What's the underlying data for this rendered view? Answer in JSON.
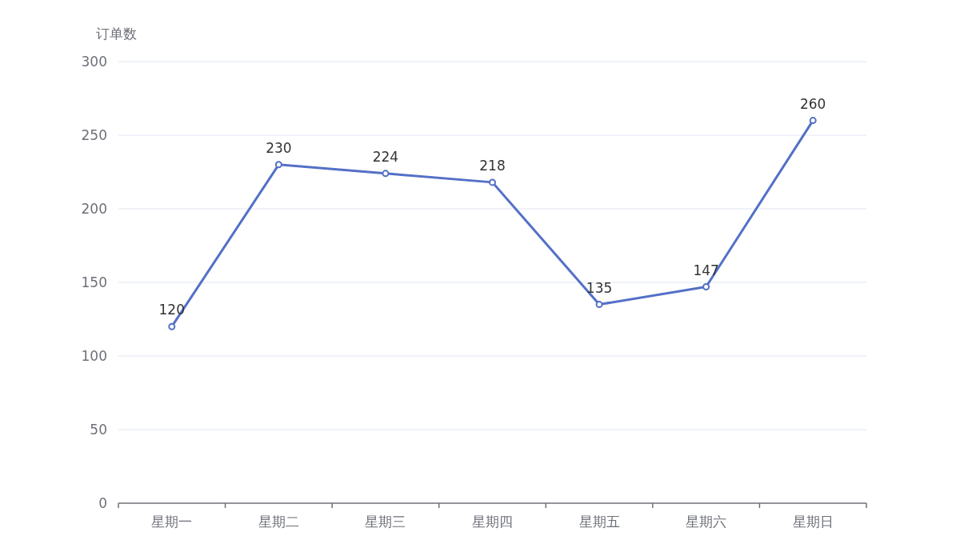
{
  "chart_data": {
    "type": "line",
    "ylabel": "订单数",
    "categories": [
      "星期一",
      "星期二",
      "星期三",
      "星期四",
      "星期五",
      "星期六",
      "星期日"
    ],
    "series": [
      {
        "color": "#5470c6",
        "values": [
          120,
          230,
          224,
          218,
          135,
          147,
          260
        ]
      }
    ],
    "ylim": [
      0,
      300
    ],
    "yticks": [
      0,
      50,
      100,
      150,
      200,
      250,
      300
    ],
    "grid": "y",
    "marker": "circle",
    "line_style": "solid",
    "data_labels": true
  }
}
